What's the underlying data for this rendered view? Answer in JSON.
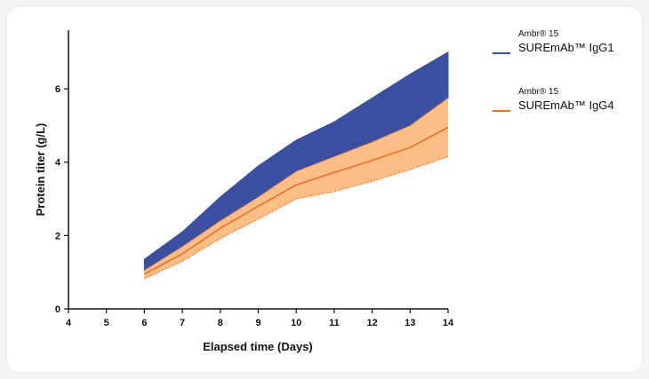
{
  "chart_data": {
    "type": "area",
    "xlabel": "Elapsed time (Days)",
    "ylabel": "Protein titer (g/L)",
    "xlim": [
      4,
      14
    ],
    "ylim": [
      0,
      7.6
    ],
    "xticks": [
      "4",
      "5",
      "6",
      "7",
      "8",
      "9",
      "10",
      "11",
      "12",
      "13",
      "14"
    ],
    "yticks": [
      "0",
      "2",
      "4",
      "6"
    ],
    "x": [
      6,
      7,
      8,
      9,
      10,
      11,
      12,
      13,
      14
    ],
    "legend_position": "right",
    "series": [
      {
        "name": "SUREmAb™ IgG1",
        "name_prefix": "Ambr® 15",
        "color": "#3a4fa0",
        "upper": [
          1.35,
          2.1,
          3.05,
          3.9,
          4.6,
          5.1,
          5.75,
          6.4,
          7.0
        ],
        "lower": [
          1.05,
          1.7,
          2.4,
          3.05,
          3.75,
          4.15,
          4.55,
          5.0,
          5.75
        ]
      },
      {
        "name": "SUREmAb™ IgG4",
        "name_prefix": "Ambr® 15",
        "color": "#f26b2a",
        "fill": "#fbbf86",
        "upper": [
          1.05,
          1.7,
          2.4,
          3.05,
          3.75,
          4.15,
          4.55,
          5.0,
          5.75
        ],
        "mean": [
          0.95,
          1.5,
          2.2,
          2.8,
          3.38,
          3.72,
          4.05,
          4.4,
          4.95
        ],
        "lower": [
          0.82,
          1.3,
          1.92,
          2.45,
          3.0,
          3.2,
          3.48,
          3.8,
          4.15
        ]
      }
    ]
  }
}
